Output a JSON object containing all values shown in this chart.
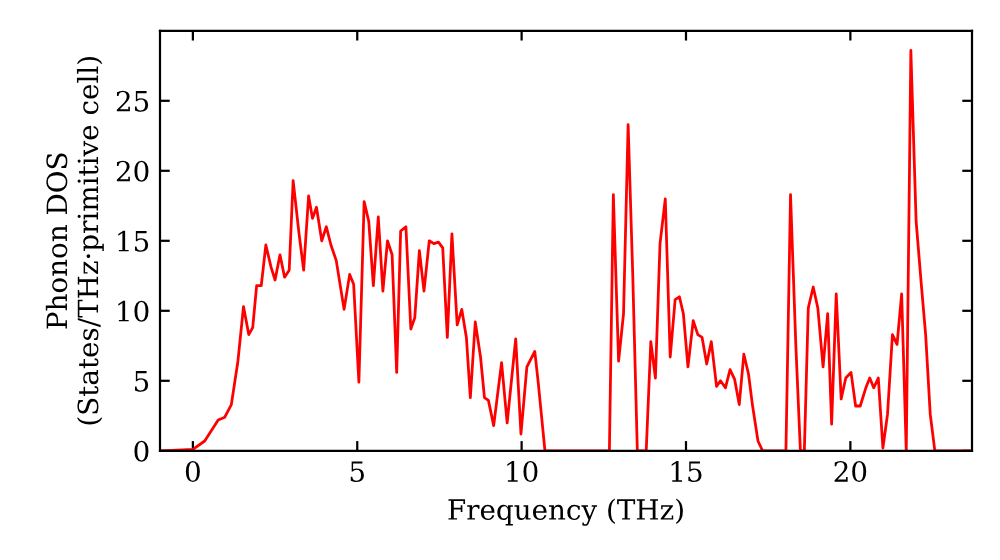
{
  "chart_data": {
    "type": "line",
    "xlabel": "Frequency (THz)",
    "ylabel": "Phonon DOS\n(States/THz·primitive cell)",
    "xlim": [
      -1,
      23.7
    ],
    "ylim": [
      0,
      30
    ],
    "xticks": [
      0,
      5,
      10,
      15,
      20
    ],
    "yticks": [
      0,
      5,
      10,
      15,
      20,
      25
    ],
    "grid": false,
    "legend": false,
    "marker": "none",
    "line_style": "solid",
    "series": [
      {
        "color": "#ff0000",
        "x": [
          -0.95,
          0,
          0.36,
          0.77,
          0.97,
          1.17,
          1.37,
          1.54,
          1.7,
          1.82,
          1.94,
          2.08,
          2.22,
          2.38,
          2.5,
          2.65,
          2.79,
          2.93,
          3.05,
          3.23,
          3.37,
          3.52,
          3.64,
          3.76,
          3.92,
          4.06,
          4.2,
          4.36,
          4.6,
          4.77,
          4.89,
          5.05,
          5.21,
          5.35,
          5.49,
          5.64,
          5.78,
          5.92,
          6.06,
          6.2,
          6.32,
          6.48,
          6.63,
          6.75,
          6.89,
          7.03,
          7.19,
          7.33,
          7.47,
          7.6,
          7.74,
          7.88,
          8.04,
          8.18,
          8.32,
          8.44,
          8.59,
          8.75,
          8.87,
          8.99,
          9.15,
          9.39,
          9.56,
          9.82,
          9.98,
          10.16,
          10.4,
          10.5,
          10.71,
          12.67,
          12.79,
          12.95,
          13.1,
          13.24,
          13.38,
          13.52,
          13.79,
          13.93,
          14.07,
          14.21,
          14.37,
          14.52,
          14.67,
          14.8,
          14.92,
          15.06,
          15.22,
          15.36,
          15.49,
          15.63,
          15.77,
          15.93,
          16.05,
          16.2,
          16.34,
          16.48,
          16.62,
          16.76,
          16.9,
          17.02,
          17.19,
          17.33,
          18.04,
          18.18,
          18.34,
          18.48,
          18.6,
          18.72,
          18.87,
          19.01,
          19.17,
          19.31,
          19.43,
          19.57,
          19.72,
          19.86,
          20.02,
          20.16,
          20.3,
          20.47,
          20.59,
          20.71,
          20.85,
          20.99,
          21.13,
          21.28,
          21.42,
          21.56,
          21.7,
          21.84,
          22.0,
          22.15,
          22.29,
          22.43,
          22.57,
          23.6
        ],
        "values": [
          0,
          0.1,
          0.7,
          2.2,
          2.4,
          3.3,
          6.4,
          10.3,
          8.3,
          8.8,
          11.8,
          11.8,
          14.7,
          13.1,
          12.2,
          14,
          12.4,
          12.9,
          19.3,
          15.5,
          12.9,
          18.2,
          16.6,
          17.4,
          15,
          16,
          14.7,
          13.6,
          10.1,
          12.6,
          11.9,
          4.9,
          17.8,
          16.4,
          11.8,
          16.7,
          11.4,
          15,
          14,
          5.6,
          15.7,
          16,
          8.7,
          9.5,
          14.3,
          11.4,
          15,
          14.8,
          14.9,
          14.5,
          8.1,
          15.5,
          9,
          10.1,
          8.1,
          3.8,
          9.2,
          6.7,
          3.8,
          3.6,
          1.8,
          6.3,
          2,
          8,
          1.2,
          6,
          7.1,
          5,
          0,
          0,
          18.3,
          6.4,
          9.8,
          23.3,
          12.6,
          0,
          0,
          7.8,
          5.2,
          14.8,
          18,
          6.7,
          10.8,
          11,
          9.8,
          6,
          9.3,
          8.3,
          8.1,
          6.2,
          7.8,
          4.6,
          5,
          4.5,
          5.8,
          5.1,
          3.3,
          6.9,
          5.5,
          3.3,
          0.7,
          0,
          0,
          18.3,
          7.6,
          0,
          0,
          10.2,
          11.7,
          10.2,
          6,
          9.8,
          1.9,
          11.2,
          3.7,
          5.2,
          5.6,
          3.2,
          3.2,
          4.5,
          5.2,
          4.5,
          5.2,
          0.2,
          2.6,
          8.3,
          7.6,
          11.2,
          0,
          28.6,
          16.4,
          12.1,
          8.3,
          2.6,
          0,
          0
        ]
      }
    ]
  }
}
